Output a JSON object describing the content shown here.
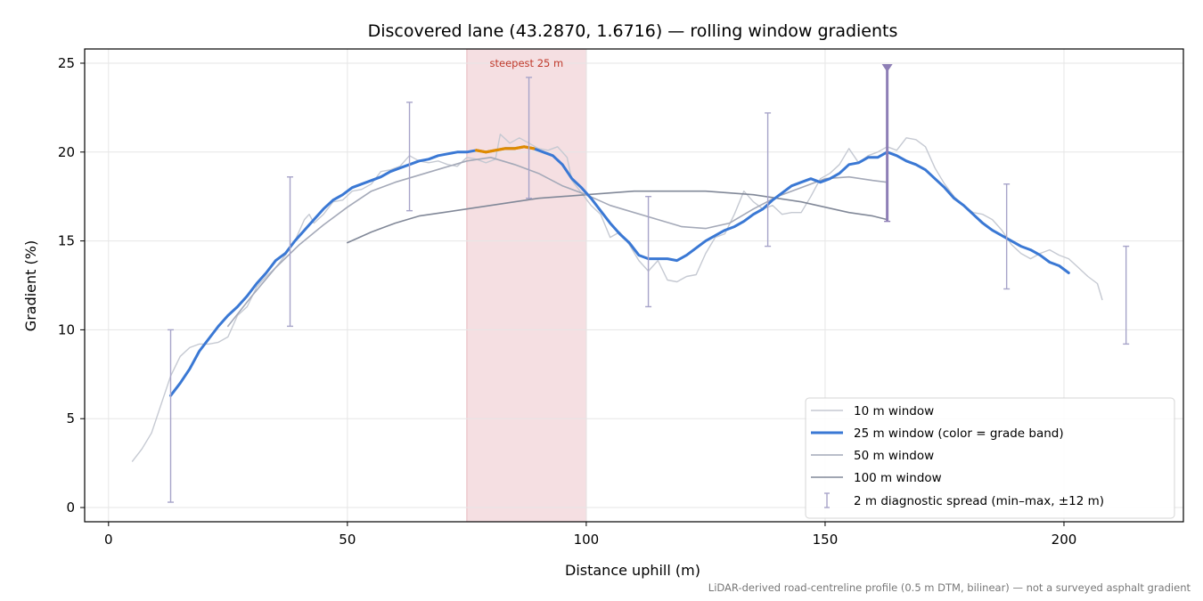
{
  "chart_data": {
    "type": "line",
    "title": "Discovered lane (43.2870, 1.6716) — rolling window gradients",
    "xlabel": "Distance uphill (m)",
    "ylabel": "Gradient (%)",
    "xlim": [
      -5,
      225
    ],
    "ylim": [
      -0.8,
      25.8
    ],
    "xticks": [
      0,
      50,
      100,
      150,
      200
    ],
    "yticks": [
      0,
      5,
      10,
      15,
      20,
      25
    ],
    "grid": true,
    "legend_position": "lower-right",
    "footnote": "LiDAR-derived road-centreline profile (0.5 m DTM, bilinear) — not a surveyed asphalt gradient",
    "highlight_region": {
      "x_start": 75,
      "x_end": 100,
      "label": "steepest 25 m",
      "color": "#f5dfe2"
    },
    "colors": {
      "w10": "#c5c9d2",
      "w25": "#3a78d4",
      "w25_steep": "#e08b00",
      "w50": "#a4a9b8",
      "w100": "#818898",
      "errorbar": "#a7a4c9",
      "marker": "#8e7fb6"
    },
    "series": [
      {
        "name": "10 m window",
        "key": "w10",
        "x": [
          5,
          7,
          9,
          11,
          13,
          15,
          17,
          19,
          21,
          23,
          25,
          27,
          29,
          31,
          33,
          35,
          37,
          39,
          41,
          42,
          43,
          45,
          47,
          49,
          51,
          53,
          55,
          57,
          59,
          61,
          63,
          65,
          67,
          69,
          71,
          73,
          75,
          77,
          79,
          81,
          82,
          84,
          86,
          88,
          90,
          92,
          94,
          96,
          97,
          99,
          101,
          103,
          105,
          107,
          109,
          111,
          113,
          115,
          117,
          119,
          121,
          123,
          125,
          127,
          129,
          131,
          133,
          135,
          137,
          139,
          141,
          143,
          145,
          147,
          149,
          151,
          153,
          155,
          157,
          159,
          161,
          163,
          165,
          167,
          169,
          171,
          173,
          175,
          177,
          179,
          181,
          183,
          185,
          187,
          189,
          191,
          193,
          195,
          197,
          199,
          201,
          203,
          205,
          207,
          208
        ],
        "y": [
          2.6,
          3.3,
          4.2,
          5.8,
          7.4,
          8.5,
          9.0,
          9.2,
          9.2,
          9.3,
          9.6,
          10.8,
          11.3,
          12.4,
          13.0,
          13.5,
          14.2,
          15.0,
          16.2,
          16.5,
          16.0,
          16.5,
          17.2,
          17.3,
          17.8,
          17.9,
          18.2,
          18.9,
          19.0,
          19.2,
          19.8,
          19.5,
          19.4,
          19.5,
          19.3,
          19.2,
          19.7,
          19.6,
          19.4,
          19.6,
          21.0,
          20.5,
          20.8,
          20.5,
          20.2,
          20.1,
          20.3,
          19.7,
          18.4,
          17.7,
          17.0,
          16.5,
          15.2,
          15.5,
          14.8,
          13.9,
          13.3,
          13.9,
          12.8,
          12.7,
          13.0,
          13.1,
          14.3,
          15.2,
          15.4,
          16.5,
          17.8,
          17.2,
          16.8,
          17.0,
          16.5,
          16.6,
          16.6,
          17.5,
          18.5,
          18.8,
          19.3,
          20.2,
          19.4,
          19.8,
          20.0,
          20.3,
          20.1,
          20.8,
          20.7,
          20.3,
          19.1,
          18.2,
          17.5,
          17.0,
          16.6,
          16.5,
          16.2,
          15.6,
          14.8,
          14.3,
          14.0,
          14.3,
          14.5,
          14.2,
          14.0,
          13.5,
          13.0,
          12.6,
          11.7
        ]
      },
      {
        "name": "25 m window (color = grade band)",
        "key": "w25",
        "x": [
          13,
          15,
          17,
          19,
          21,
          23,
          25,
          27,
          29,
          31,
          33,
          35,
          37,
          39,
          41,
          43,
          45,
          47,
          49,
          51,
          53,
          55,
          57,
          59,
          61,
          63,
          65,
          67,
          69,
          71,
          73,
          75,
          77,
          79,
          81,
          83,
          85,
          87,
          89,
          91,
          93,
          95,
          97,
          99,
          101,
          103,
          105,
          107,
          109,
          111,
          113,
          115,
          117,
          119,
          121,
          123,
          125,
          127,
          129,
          131,
          133,
          135,
          137,
          139,
          141,
          143,
          145,
          147,
          149,
          151,
          153,
          155,
          157,
          159,
          161,
          163,
          165,
          167,
          169,
          171,
          173,
          175,
          177,
          179,
          181,
          183,
          185,
          187,
          189,
          191,
          193,
          195,
          197,
          199,
          201
        ],
        "y": [
          6.3,
          7.0,
          7.8,
          8.8,
          9.5,
          10.2,
          10.8,
          11.3,
          11.9,
          12.6,
          13.2,
          13.9,
          14.3,
          15.0,
          15.6,
          16.2,
          16.8,
          17.3,
          17.6,
          18.0,
          18.2,
          18.4,
          18.6,
          18.9,
          19.1,
          19.3,
          19.5,
          19.6,
          19.8,
          19.9,
          20.0,
          20.0,
          20.1,
          20.0,
          20.1,
          20.2,
          20.2,
          20.3,
          20.2,
          20.0,
          19.8,
          19.3,
          18.5,
          18.0,
          17.4,
          16.7,
          16.0,
          15.4,
          14.9,
          14.2,
          14.0,
          14.0,
          14.0,
          13.9,
          14.2,
          14.6,
          15.0,
          15.3,
          15.6,
          15.8,
          16.1,
          16.5,
          16.8,
          17.3,
          17.7,
          18.1,
          18.3,
          18.5,
          18.3,
          18.5,
          18.8,
          19.3,
          19.4,
          19.7,
          19.7,
          20.0,
          19.8,
          19.5,
          19.3,
          19.0,
          18.5,
          18.0,
          17.4,
          17.0,
          16.5,
          16.0,
          15.6,
          15.3,
          15.0,
          14.7,
          14.5,
          14.2,
          13.8,
          13.6,
          13.2
        ]
      },
      {
        "name": "50 m window",
        "key": "w50",
        "x": [
          25,
          30,
          35,
          40,
          45,
          50,
          55,
          60,
          65,
          70,
          75,
          80,
          85,
          90,
          95,
          100,
          105,
          110,
          115,
          120,
          125,
          130,
          135,
          140,
          145,
          150,
          155,
          160,
          163
        ],
        "y": [
          10.2,
          11.9,
          13.5,
          14.8,
          15.9,
          16.9,
          17.8,
          18.3,
          18.7,
          19.1,
          19.5,
          19.7,
          19.3,
          18.8,
          18.1,
          17.6,
          17.0,
          16.6,
          16.2,
          15.8,
          15.7,
          16.0,
          16.8,
          17.5,
          18.0,
          18.5,
          18.6,
          18.4,
          18.3
        ]
      },
      {
        "name": "100 m window",
        "key": "w100",
        "x": [
          50,
          55,
          60,
          65,
          70,
          75,
          80,
          85,
          90,
          95,
          100,
          105,
          110,
          115,
          120,
          125,
          130,
          135,
          140,
          145,
          150,
          155,
          160,
          163
        ],
        "y": [
          14.9,
          15.5,
          16.0,
          16.4,
          16.6,
          16.8,
          17.0,
          17.2,
          17.4,
          17.5,
          17.6,
          17.7,
          17.8,
          17.8,
          17.8,
          17.8,
          17.7,
          17.6,
          17.4,
          17.2,
          16.9,
          16.6,
          16.4,
          16.2
        ]
      }
    ],
    "steep_segment": {
      "x_start": 76,
      "x_end": 90
    },
    "errorbars": {
      "name": "2 m diagnostic spread (min–max, ±12 m)",
      "points": [
        {
          "x": 13,
          "low": 0.3,
          "high": 10.0
        },
        {
          "x": 38,
          "low": 10.2,
          "high": 18.6
        },
        {
          "x": 63,
          "low": 16.7,
          "high": 22.8
        },
        {
          "x": 88,
          "low": 17.4,
          "high": 24.2
        },
        {
          "x": 113,
          "low": 11.3,
          "high": 17.5
        },
        {
          "x": 138,
          "low": 14.7,
          "high": 22.2
        },
        {
          "x": 163,
          "low": 16.1,
          "high": 24.8
        },
        {
          "x": 188,
          "low": 12.3,
          "high": 18.2
        },
        {
          "x": 213,
          "low": 9.2,
          "high": 14.7
        }
      ],
      "marker_x": 163
    }
  }
}
